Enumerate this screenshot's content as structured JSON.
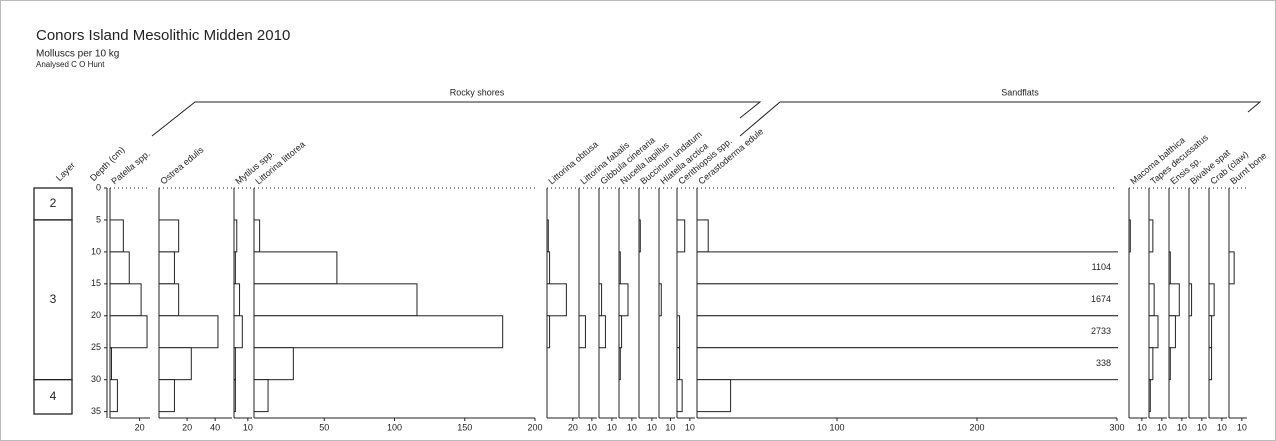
{
  "title": "Conors Island Mesolithic Midden 2010",
  "subtitle": "Molluscs per 10 kg",
  "credit": "Analysed C O Hunt",
  "layer_label": "Layer",
  "layers": [
    {
      "label": "2",
      "top": 0,
      "bottom": 5
    },
    {
      "label": "3",
      "top": 5,
      "bottom": 30
    },
    {
      "label": "4",
      "top": 30,
      "bottom": 36
    }
  ],
  "depth": {
    "label": "Depth (cm)",
    "ylim": [
      0,
      36
    ],
    "yticks": [
      0,
      5,
      10,
      15,
      20,
      25,
      30,
      35
    ]
  },
  "samples": [
    {
      "top": 5,
      "bottom": 10
    },
    {
      "top": 10,
      "bottom": 15
    },
    {
      "top": 15,
      "bottom": 20
    },
    {
      "top": 20,
      "bottom": 25
    },
    {
      "top": 25,
      "bottom": 30
    },
    {
      "top": 30,
      "bottom": 35
    }
  ],
  "groups": [
    "Rocky shores",
    "Sandflats"
  ],
  "chart_data": [
    {
      "type": "bar",
      "title": "Patella spp.",
      "values": [
        9,
        13,
        21,
        25,
        1,
        5
      ],
      "xlim": [
        0,
        27
      ],
      "xticks": [
        20
      ]
    },
    {
      "type": "bar",
      "title": "Ostrea edulis",
      "values": [
        14,
        11,
        14,
        42,
        23,
        11
      ],
      "xlim": [
        0,
        52
      ],
      "xticks": [
        20,
        40
      ]
    },
    {
      "type": "bar",
      "title": "Mytilus spp.",
      "values": [
        2,
        1,
        4,
        6,
        1,
        1
      ],
      "xlim": [
        0,
        13
      ],
      "xticks": [
        10
      ]
    },
    {
      "type": "bar",
      "title": "Littorina littorea",
      "values": [
        4,
        59,
        116,
        177,
        28,
        10
      ],
      "xlim": [
        0,
        200
      ],
      "xticks": [
        50,
        100,
        150,
        200
      ]
    },
    {
      "type": "bar",
      "title": "Littorina obtusa",
      "values": [
        1,
        2,
        15,
        2,
        0,
        0
      ],
      "xlim": [
        0,
        24
      ],
      "xticks": [
        20
      ]
    },
    {
      "type": "bar",
      "title": "Littorina fabalis",
      "values": [
        0,
        0,
        0,
        5,
        0,
        0
      ],
      "xlim": [
        0,
        14
      ],
      "xticks": [
        10
      ]
    },
    {
      "type": "bar",
      "title": "Gibbula cineraria",
      "values": [
        0,
        0,
        2,
        5,
        0,
        0
      ],
      "xlim": [
        0,
        14
      ],
      "xticks": [
        10
      ]
    },
    {
      "type": "bar",
      "title": "Nucella lapillus",
      "values": [
        0,
        1,
        7,
        2,
        1,
        0
      ],
      "xlim": [
        0,
        14
      ],
      "xticks": [
        10
      ]
    },
    {
      "type": "bar",
      "title": "Buccinum undatum",
      "values": [
        1,
        0,
        0,
        0,
        0,
        0
      ],
      "xlim": [
        0,
        14
      ],
      "xticks": [
        10
      ]
    },
    {
      "type": "bar",
      "title": "Hiatella arctica",
      "values": [
        0,
        0,
        2,
        0,
        0,
        0
      ],
      "xlim": [
        0,
        14
      ],
      "xticks": [
        10
      ]
    },
    {
      "type": "bar",
      "title": "Cerithiopsis spp.",
      "values": [
        6,
        0,
        0,
        2,
        2,
        4
      ],
      "xlim": [
        0,
        14
      ],
      "xticks": [
        10
      ]
    },
    {
      "type": "bar",
      "title": "Cerastoderma edule",
      "values": [
        8,
        1104,
        1674,
        2733,
        338,
        24
      ],
      "xlim": [
        0,
        300
      ],
      "xticks": [
        100,
        200,
        300
      ]
    },
    {
      "type": "bar",
      "title": "Macoma balthica",
      "values": [
        1,
        0,
        0,
        0,
        0,
        0
      ],
      "xlim": [
        0,
        14
      ],
      "xticks": [
        10
      ]
    },
    {
      "type": "bar",
      "title": "Tapes decussatus",
      "values": [
        3,
        0,
        4,
        7,
        3,
        1
      ],
      "xlim": [
        0,
        14
      ],
      "xticks": [
        10
      ]
    },
    {
      "type": "bar",
      "title": "Ensis sp.",
      "values": [
        0,
        1,
        8,
        5,
        1,
        0
      ],
      "xlim": [
        0,
        14
      ],
      "xticks": [
        10
      ]
    },
    {
      "type": "bar",
      "title": "Bivalve spat",
      "values": [
        0,
        0,
        2,
        0,
        0,
        0
      ],
      "xlim": [
        0,
        14
      ],
      "xticks": [
        10
      ]
    },
    {
      "type": "bar",
      "title": "Crab (claw)",
      "values": [
        0,
        0,
        4,
        2,
        2,
        0
      ],
      "xlim": [
        0,
        14
      ],
      "xticks": [
        10
      ]
    },
    {
      "type": "bar",
      "title": "Burnt bone",
      "values": [
        0,
        4,
        0,
        0,
        0,
        0
      ],
      "xlim": [
        0,
        14
      ],
      "xticks": [
        10
      ]
    }
  ]
}
